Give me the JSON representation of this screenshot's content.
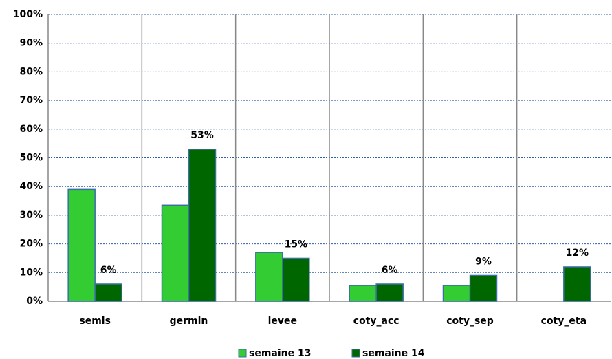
{
  "chart_data": {
    "type": "bar",
    "categories": [
      "semis",
      "germin",
      "levee",
      "coty_acc",
      "coty_sep",
      "coty_eta"
    ],
    "series": [
      {
        "name": "semaine 13",
        "color": "#33cc33",
        "values": [
          39,
          33.5,
          17,
          5.5,
          5.5,
          null
        ]
      },
      {
        "name": "semaine 14",
        "color": "#006600",
        "values": [
          6,
          53,
          15,
          6,
          9,
          12
        ],
        "value_labels": [
          "6%",
          "53%",
          "15%",
          "6%",
          "9%",
          "12%"
        ]
      }
    ],
    "ylim": [
      0,
      100
    ],
    "yticks": [
      {
        "value": 0,
        "label": "0%"
      },
      {
        "value": 10,
        "label": "10%"
      },
      {
        "value": 20,
        "label": "20%"
      },
      {
        "value": 30,
        "label": "30%"
      },
      {
        "value": 40,
        "label": "40%"
      },
      {
        "value": 50,
        "label": "50%"
      },
      {
        "value": 60,
        "label": "60%"
      },
      {
        "value": 70,
        "label": "70%"
      },
      {
        "value": 80,
        "label": "80%"
      },
      {
        "value": 90,
        "label": "90%"
      },
      {
        "value": 100,
        "label": "100%"
      }
    ],
    "grid": true,
    "legend": "bottom"
  }
}
